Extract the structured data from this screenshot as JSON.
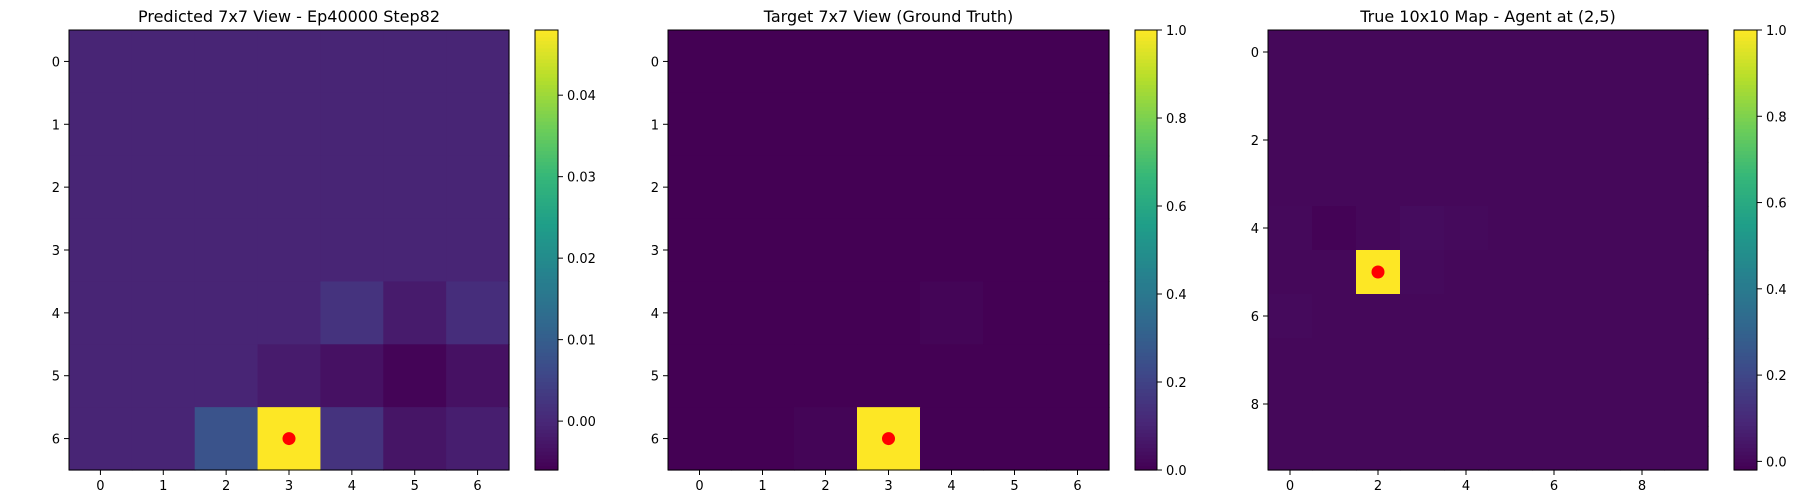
{
  "colormap": {
    "name": "viridis",
    "stops": [
      "#440154",
      "#482878",
      "#3e4989",
      "#31688e",
      "#26828e",
      "#1f9e89",
      "#35b779",
      "#6ece58",
      "#b5de2b",
      "#fde725"
    ]
  },
  "marker_color": "#ff0000",
  "chart_data": [
    {
      "type": "heatmap",
      "title": "Predicted 7x7 View - Ep40000 Step82",
      "x_ticks": [
        0,
        1,
        2,
        3,
        4,
        5,
        6
      ],
      "y_ticks": [
        0,
        1,
        2,
        3,
        4,
        5,
        6
      ],
      "vmin": -0.006,
      "vmax": 0.048,
      "colorbar_ticks": [
        0.04,
        0.03,
        0.02,
        0.01,
        0.0
      ],
      "colorbar_tick_labels": [
        "0.04",
        "0.03",
        "0.02",
        "0.01",
        "0.00"
      ],
      "marker": {
        "x": 3,
        "y": 6
      },
      "values": [
        [
          -0.0005,
          -0.0005,
          -0.0005,
          -0.0005,
          -0.0005,
          -0.0005,
          -0.0005
        ],
        [
          -0.0005,
          -0.0005,
          -0.0005,
          -0.0005,
          -0.0005,
          -0.0005,
          -0.0005
        ],
        [
          -0.0005,
          -0.0005,
          -0.0005,
          -0.0005,
          -0.0005,
          -0.0005,
          -0.0005
        ],
        [
          -0.0005,
          -0.0005,
          -0.0005,
          -0.0005,
          -0.0005,
          -0.0005,
          -0.0005
        ],
        [
          -0.0005,
          -0.0005,
          -0.0005,
          -0.0005,
          0.002,
          -0.002,
          0.001
        ],
        [
          -0.0005,
          -0.0005,
          -0.0005,
          -0.002,
          -0.0035,
          -0.0055,
          -0.0035
        ],
        [
          -0.0005,
          -0.0005,
          0.008,
          0.048,
          0.002,
          -0.003,
          -0.0015
        ]
      ]
    },
    {
      "type": "heatmap",
      "title": "Target 7x7 View (Ground Truth)",
      "x_ticks": [
        0,
        1,
        2,
        3,
        4,
        5,
        6
      ],
      "y_ticks": [
        0,
        1,
        2,
        3,
        4,
        5,
        6
      ],
      "vmin": 0.0,
      "vmax": 1.0,
      "colorbar_ticks": [
        1.0,
        0.8,
        0.6,
        0.4,
        0.2,
        0.0
      ],
      "colorbar_tick_labels": [
        "1.0",
        "0.8",
        "0.6",
        "0.4",
        "0.2",
        "0.0"
      ],
      "marker": {
        "x": 3,
        "y": 6
      },
      "values": [
        [
          0,
          0,
          0,
          0,
          0,
          0,
          0
        ],
        [
          0,
          0,
          0,
          0,
          0,
          0,
          0
        ],
        [
          0,
          0,
          0,
          0,
          0,
          0,
          0
        ],
        [
          0,
          0,
          0,
          0,
          0,
          0,
          0
        ],
        [
          0,
          0,
          0,
          0,
          0.01,
          0,
          0
        ],
        [
          0,
          0,
          0,
          0,
          0,
          0,
          0
        ],
        [
          0,
          0,
          0.01,
          1.0,
          0,
          0,
          0
        ]
      ]
    },
    {
      "type": "heatmap",
      "title": "True 10x10 Map - Agent at (2,5)",
      "x_ticks": [
        0,
        2,
        4,
        6,
        8
      ],
      "y_ticks": [
        0,
        2,
        4,
        6,
        8
      ],
      "vmin": -0.02,
      "vmax": 1.0,
      "colorbar_ticks": [
        1.0,
        0.8,
        0.6,
        0.4,
        0.2,
        0.0
      ],
      "colorbar_tick_labels": [
        "1.0",
        "0.8",
        "0.6",
        "0.4",
        "0.2",
        "0.0"
      ],
      "marker": {
        "x": 2,
        "y": 5
      },
      "values": [
        [
          0,
          0,
          0,
          0,
          0,
          0,
          0,
          0,
          0,
          0
        ],
        [
          0,
          0,
          0,
          0,
          0,
          0,
          0,
          0,
          0,
          0
        ],
        [
          0,
          0,
          0,
          0,
          0,
          0,
          0,
          0,
          0,
          0
        ],
        [
          0,
          0,
          0,
          0,
          0,
          0,
          0,
          0,
          0,
          0
        ],
        [
          0.002,
          -0.015,
          0,
          0.012,
          0.006,
          0,
          0,
          0,
          0,
          0
        ],
        [
          0,
          0,
          1.0,
          0.006,
          0,
          0,
          0,
          0,
          0,
          0
        ],
        [
          0.006,
          0,
          0,
          0,
          0,
          0,
          0,
          0,
          0,
          0
        ],
        [
          0,
          0,
          0,
          0,
          0,
          0,
          0,
          0,
          0,
          0
        ],
        [
          0,
          0,
          0,
          0,
          0,
          0,
          0,
          0,
          0,
          0
        ],
        [
          0,
          0,
          0,
          0,
          0,
          0,
          0,
          0,
          0,
          0
        ]
      ]
    }
  ]
}
